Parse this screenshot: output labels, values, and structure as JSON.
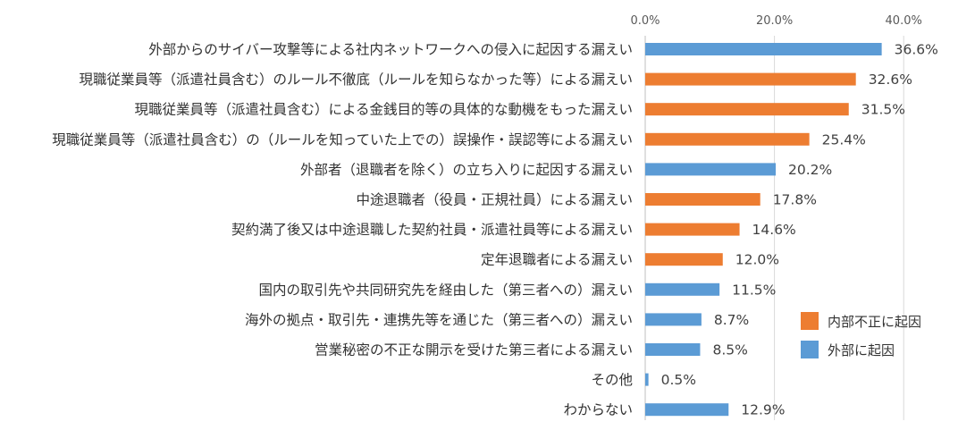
{
  "chart_data": {
    "type": "bar",
    "orientation": "horizontal",
    "categories": [
      "外部からのサイバー攻撃等による社内ネットワークへの侵入に起因する漏えい",
      "現職従業員等（派遣社員含む）のルール不徹底（ルールを知らなかった等）による漏えい",
      "現職従業員等（派遣社員含む）による金銭目的等の具体的な動機をもった漏えい",
      "現職従業員等（派遣社員含む）の（ルールを知っていた上での）誤操作・誤認等による漏えい",
      "外部者（退職者を除く）の立ち入りに起因する漏えい",
      "中途退職者（役員・正規社員）による漏えい",
      "契約満了後又は中途退職した契約社員・派遣社員等による漏えい",
      "定年退職者による漏えい",
      "国内の取引先や共同研究先を経由した（第三者への）漏えい",
      "海外の拠点・取引先・連携先等を通じた（第三者への）漏えい",
      "営業秘密の不正な開示を受けた第三者による漏えい",
      "その他",
      "わからない"
    ],
    "values": [
      36.6,
      32.6,
      31.5,
      25.4,
      20.2,
      17.8,
      14.6,
      12.0,
      11.5,
      8.7,
      8.5,
      0.5,
      12.9
    ],
    "value_labels": [
      "36.6%",
      "32.6%",
      "31.5%",
      "25.4%",
      "20.2%",
      "17.8%",
      "14.6%",
      "12.0%",
      "11.5%",
      "8.7%",
      "8.5%",
      "0.5%",
      "12.9%"
    ],
    "groups": [
      "external",
      "internal",
      "internal",
      "internal",
      "external",
      "internal",
      "internal",
      "internal",
      "external",
      "external",
      "external",
      "external",
      "external"
    ],
    "xlim": [
      0,
      40
    ],
    "ticks": [
      0,
      20,
      40
    ],
    "tick_labels": [
      "0.0%",
      "20.0%",
      "40.0%"
    ],
    "axis_position": "top",
    "grid": true,
    "legend": {
      "placement": "right",
      "items": [
        {
          "key": "internal",
          "label": "内部不正に起因",
          "color": "#ED7D31"
        },
        {
          "key": "external",
          "label": "外部に起因",
          "color": "#5B9BD5"
        }
      ]
    },
    "colors": {
      "internal": "#ED7D31",
      "external": "#5B9BD5"
    }
  }
}
